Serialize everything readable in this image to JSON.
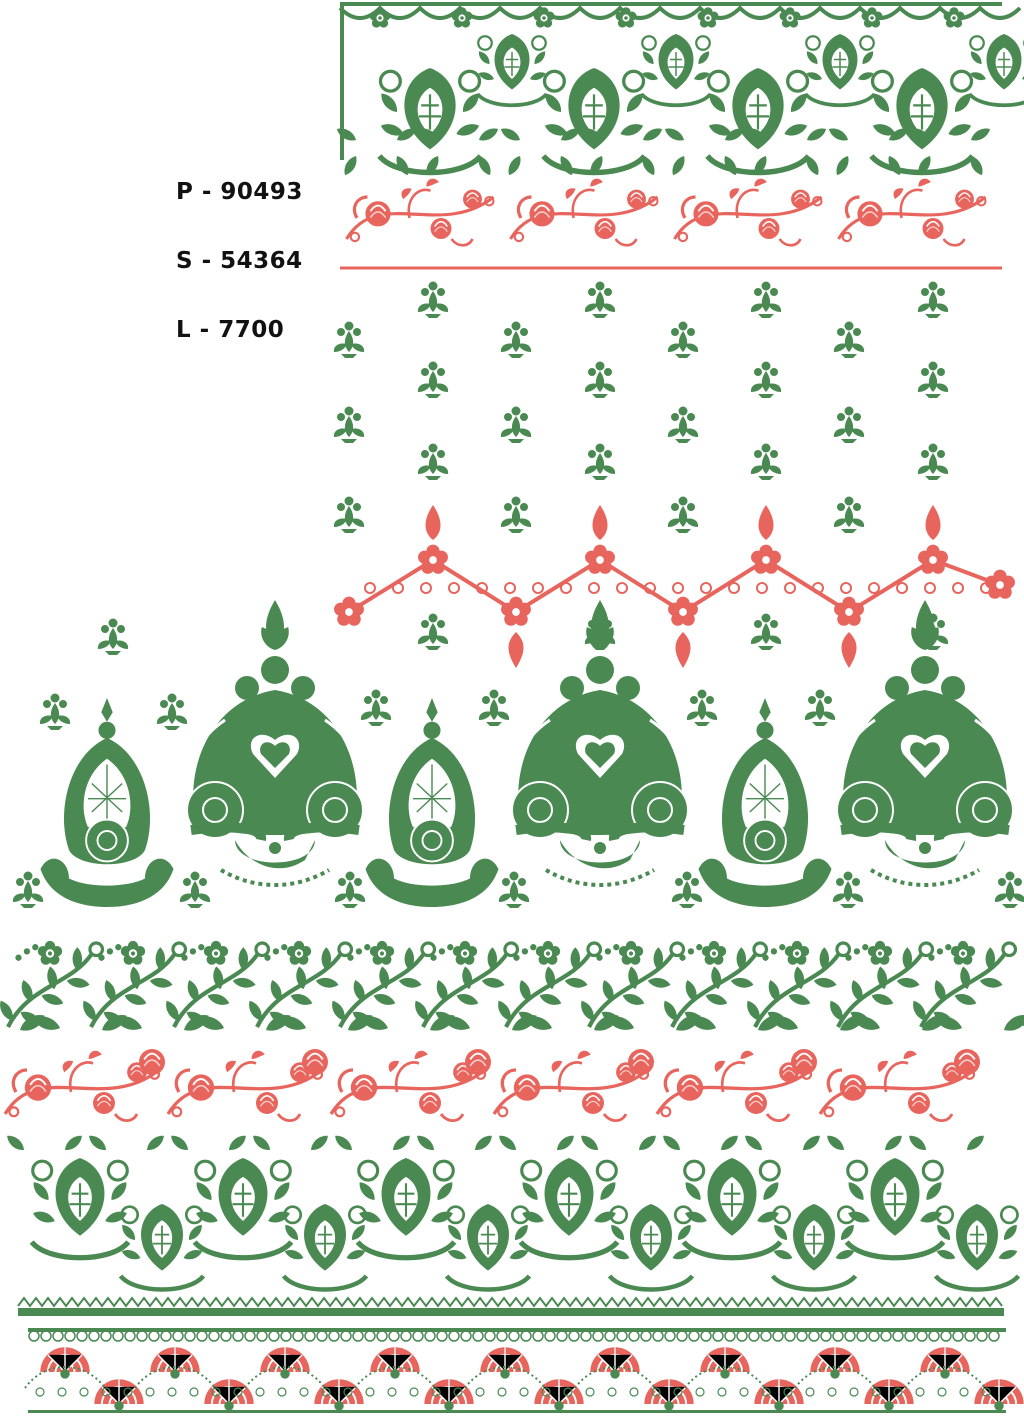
{
  "codes": {
    "p": "P - 90493",
    "s": "S - 54364",
    "l": "L - 7700"
  },
  "colors": {
    "green": "#4a8a52",
    "green_dark": "#3d7845",
    "red": "#e8655e",
    "white": "#ffffff"
  },
  "design": {
    "motif_rows": [
      {
        "name": "top-paisley-border",
        "color": "green",
        "repeat_count": 4
      },
      {
        "name": "top-red-floral-vine",
        "color": "red",
        "repeat_count": 4
      },
      {
        "name": "butti-scatter",
        "color": "green"
      },
      {
        "name": "red-zigzag-floral-chain",
        "color": "red",
        "repeat_count": 4
      },
      {
        "name": "large-kalka-motifs",
        "color": "green",
        "repeat_count": 6
      },
      {
        "name": "leafy-vine-border",
        "color": "green",
        "repeat_count": 6
      },
      {
        "name": "red-floral-vine",
        "color": "red",
        "repeat_count": 6
      },
      {
        "name": "bottom-paisley-border",
        "color": "green",
        "repeat_count": 6
      },
      {
        "name": "lace-fan-border",
        "color": "red",
        "repeat_count": 9
      }
    ]
  }
}
